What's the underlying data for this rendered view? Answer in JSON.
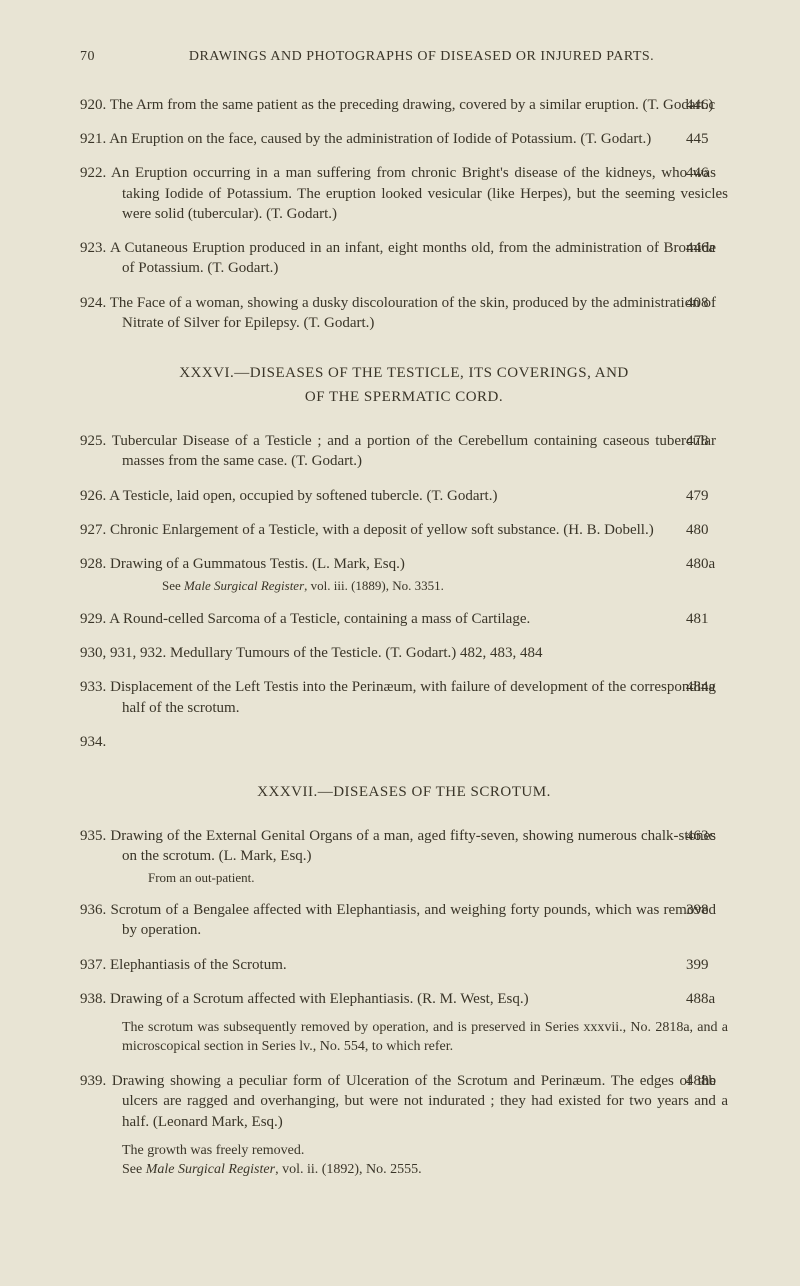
{
  "page": {
    "number": "70",
    "header": "DRAWINGS AND PHOTOGRAPHS OF DISEASED OR INJURED PARTS."
  },
  "entries": [
    {
      "num": "920.",
      "text": "The Arm from the same patient as the preceding drawing, covered by a similar eruption.   (T. Godart.)",
      "ref": "446c"
    },
    {
      "num": "921.",
      "text": "An Eruption on the face, caused by the administration of Iodide of Potassium. (T. Godart.)",
      "ref": "445"
    },
    {
      "num": "922.",
      "text": "An Eruption occurring in a man suffering from chronic Bright's disease of the kidneys, who was taking Iodide of Potassium. The eruption looked vesicular (like Herpes), but the seeming vesicles were solid (tubercular).   (T. Godart.)",
      "ref": "446"
    },
    {
      "num": "923.",
      "text": "A Cutaneous Eruption produced in an infant, eight months old, from the administration of Bromide of Potassium.   (T. Godart.)",
      "ref": "446a"
    },
    {
      "num": "924.",
      "text": "The Face of a woman, showing a dusky discolouration of the skin, produced by the administration of Nitrate of Silver for Epilepsy.   (T. Godart.)",
      "ref": "408"
    }
  ],
  "section36": {
    "title_line1": "XXXVI.—DISEASES OF THE TESTICLE, ITS COVERINGS, AND",
    "title_line2": "OF THE SPERMATIC CORD."
  },
  "entries36": [
    {
      "num": "925.",
      "text": "Tubercular Disease of a Testicle ; and a portion of the Cerebellum containing caseous tubercular masses from the same case.   (T. Godart.)",
      "ref": "478"
    },
    {
      "num": "926.",
      "text": "A Testicle, laid open, occupied by softened tubercle.   (T. Godart.)",
      "ref": "479"
    },
    {
      "num": "927.",
      "text": "Chronic Enlargement of a Testicle, with a deposit of yellow soft substance. (H. B. Dobell.)",
      "ref": "480"
    },
    {
      "num": "928.",
      "text": "Drawing of a Gummatous Testis.   (L. Mark, Esq.)",
      "ref": "480a",
      "see": "See Male Surgical Register, vol. iii. (1889), No. 3351."
    },
    {
      "num": "929.",
      "text": "A Round-celled Sarcoma of a Testicle, containing a mass of Cartilage.",
      "ref": "481"
    },
    {
      "num": "930, 931, 932.",
      "text": "Medullary Tumours of the Testicle.   (T. Godart.)   482, 483, 484",
      "ref": ""
    },
    {
      "num": "933.",
      "text": "Displacement of the Left Testis into the Perinæum, with failure of development of the corresponding half of the scrotum.",
      "ref": "484a"
    },
    {
      "num": "934.",
      "text": "",
      "ref": ""
    }
  ],
  "section37": {
    "title": "XXXVII.—DISEASES OF THE SCROTUM."
  },
  "entries37": [
    {
      "num": "935.",
      "text": "Drawing of the External Genital Organs of a man, aged fifty-seven, showing numerous chalk-stones on the scrotum.   (L. Mark, Esq.)",
      "ref": "463c",
      "sub": "From an out-patient."
    },
    {
      "num": "936.",
      "text": "Scrotum of a Bengalee affected with Elephantiasis, and weighing forty pounds, which was removed by operation.",
      "ref": "398"
    },
    {
      "num": "937.",
      "text": "Elephantiasis of the Scrotum.",
      "ref": "399"
    },
    {
      "num": "938.",
      "text": "Drawing of a Scrotum affected with Elephantiasis. (R. M. West, Esq.)",
      "ref": "488a",
      "note": "The scrotum was subsequently removed by operation, and is preserved in Series xxxvii., No. 2818a, and a microscopical section in Series lv., No. 554, to which refer."
    },
    {
      "num": "939.",
      "text": "Drawing showing a peculiar form of Ulceration of the Scrotum and Perinæum. The edges of the ulcers are ragged and overhanging, but were not indurated ; they had existed for two years and a half.   (Leonard Mark, Esq.)",
      "ref": "488b",
      "note2_line1": "The growth was freely removed.",
      "note2_line2": "See Male Surgical Register, vol. ii. (1892), No. 2555."
    }
  ]
}
